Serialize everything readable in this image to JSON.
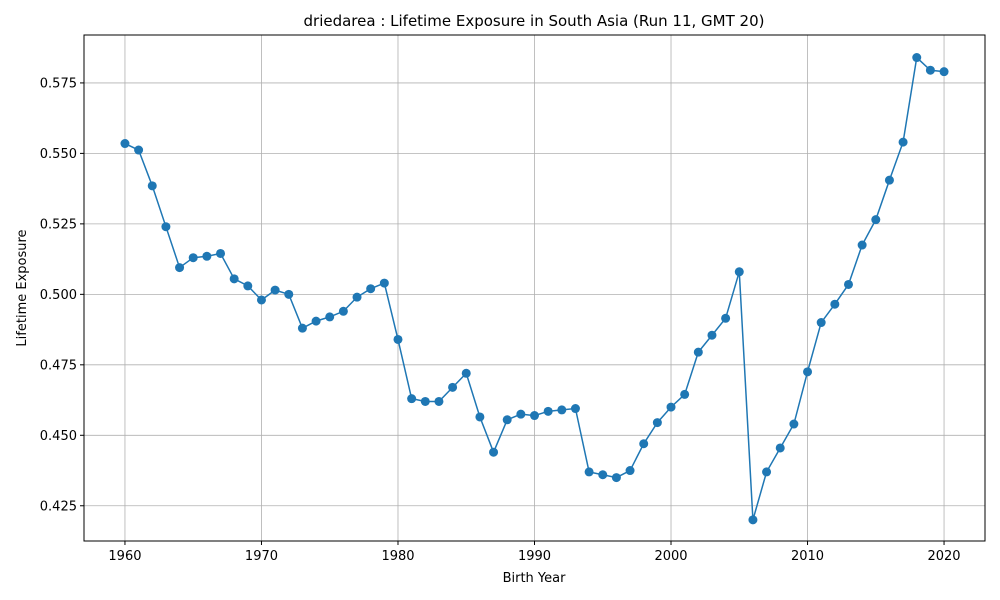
{
  "chart_data": {
    "type": "line",
    "title": "driedarea : Lifetime Exposure in South Asia (Run 11, GMT 20)",
    "xlabel": "Birth Year",
    "ylabel": "Lifetime Exposure",
    "xlim": [
      1957,
      2023
    ],
    "ylim": [
      0.4125,
      0.592
    ],
    "xticks": [
      1960,
      1970,
      1980,
      1990,
      2000,
      2010,
      2020
    ],
    "yticks": [
      0.425,
      0.45,
      0.475,
      0.5,
      0.525,
      0.55,
      0.575
    ],
    "grid": true,
    "line_color": "#1f77b4",
    "series": [
      {
        "x": [
          1960,
          1961,
          1962,
          1963,
          1964,
          1965,
          1966,
          1967,
          1968,
          1969,
          1970,
          1971,
          1972,
          1973,
          1974,
          1975,
          1976,
          1977,
          1978,
          1979,
          1980,
          1981,
          1982,
          1983,
          1984,
          1985,
          1986,
          1987,
          1988,
          1989,
          1990,
          1991,
          1992,
          1993,
          1994,
          1995,
          1996,
          1997,
          1998,
          1999,
          2000,
          2001,
          2002,
          2003,
          2004,
          2005,
          2006,
          2007,
          2008,
          2009,
          2010,
          2011,
          2012,
          2013,
          2014,
          2015,
          2016,
          2017,
          2018,
          2019,
          2020
        ],
        "values": [
          0.5535,
          0.5512,
          0.5385,
          0.524,
          0.5095,
          0.513,
          0.5135,
          0.5145,
          0.5055,
          0.503,
          0.498,
          0.5015,
          0.5,
          0.488,
          0.4905,
          0.492,
          0.494,
          0.499,
          0.502,
          0.504,
          0.484,
          0.463,
          0.462,
          0.462,
          0.467,
          0.472,
          0.4565,
          0.444,
          0.4555,
          0.4575,
          0.457,
          0.4585,
          0.459,
          0.4595,
          0.437,
          0.436,
          0.435,
          0.4375,
          0.447,
          0.4545,
          0.46,
          0.4645,
          0.4795,
          0.4855,
          0.4915,
          0.508,
          0.42,
          0.437,
          0.4455,
          0.454,
          0.4725,
          0.49,
          0.4965,
          0.5035,
          0.5175,
          0.5265,
          0.5405,
          0.554,
          0.584,
          0.5795,
          0.579
        ]
      }
    ]
  }
}
